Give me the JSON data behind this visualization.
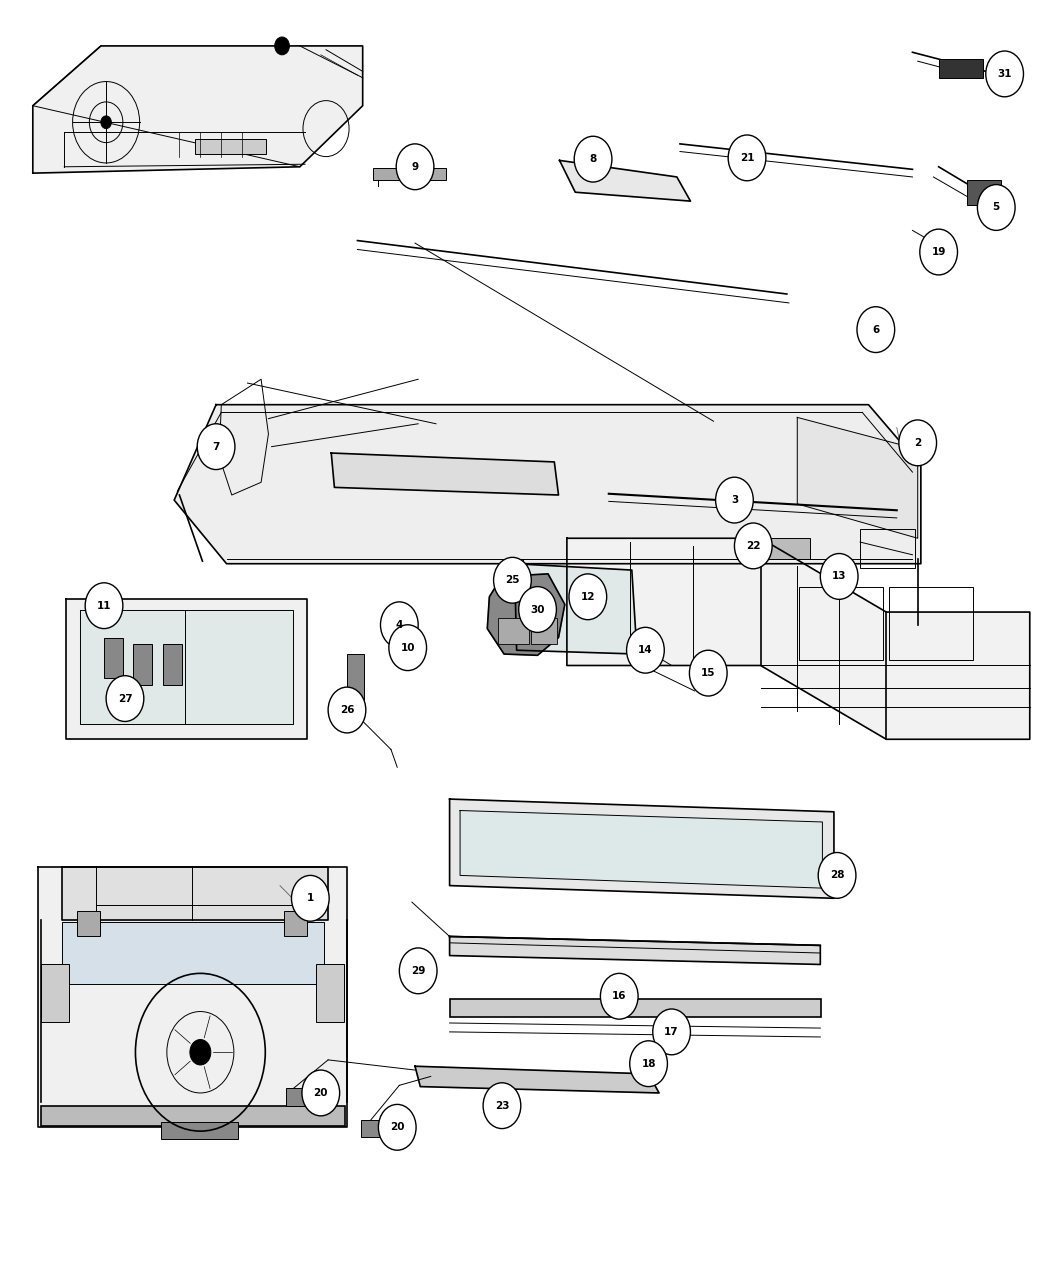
{
  "background_color": "#ffffff",
  "line_color": "#000000",
  "fig_width": 10.5,
  "fig_height": 12.75,
  "dpi": 100
}
